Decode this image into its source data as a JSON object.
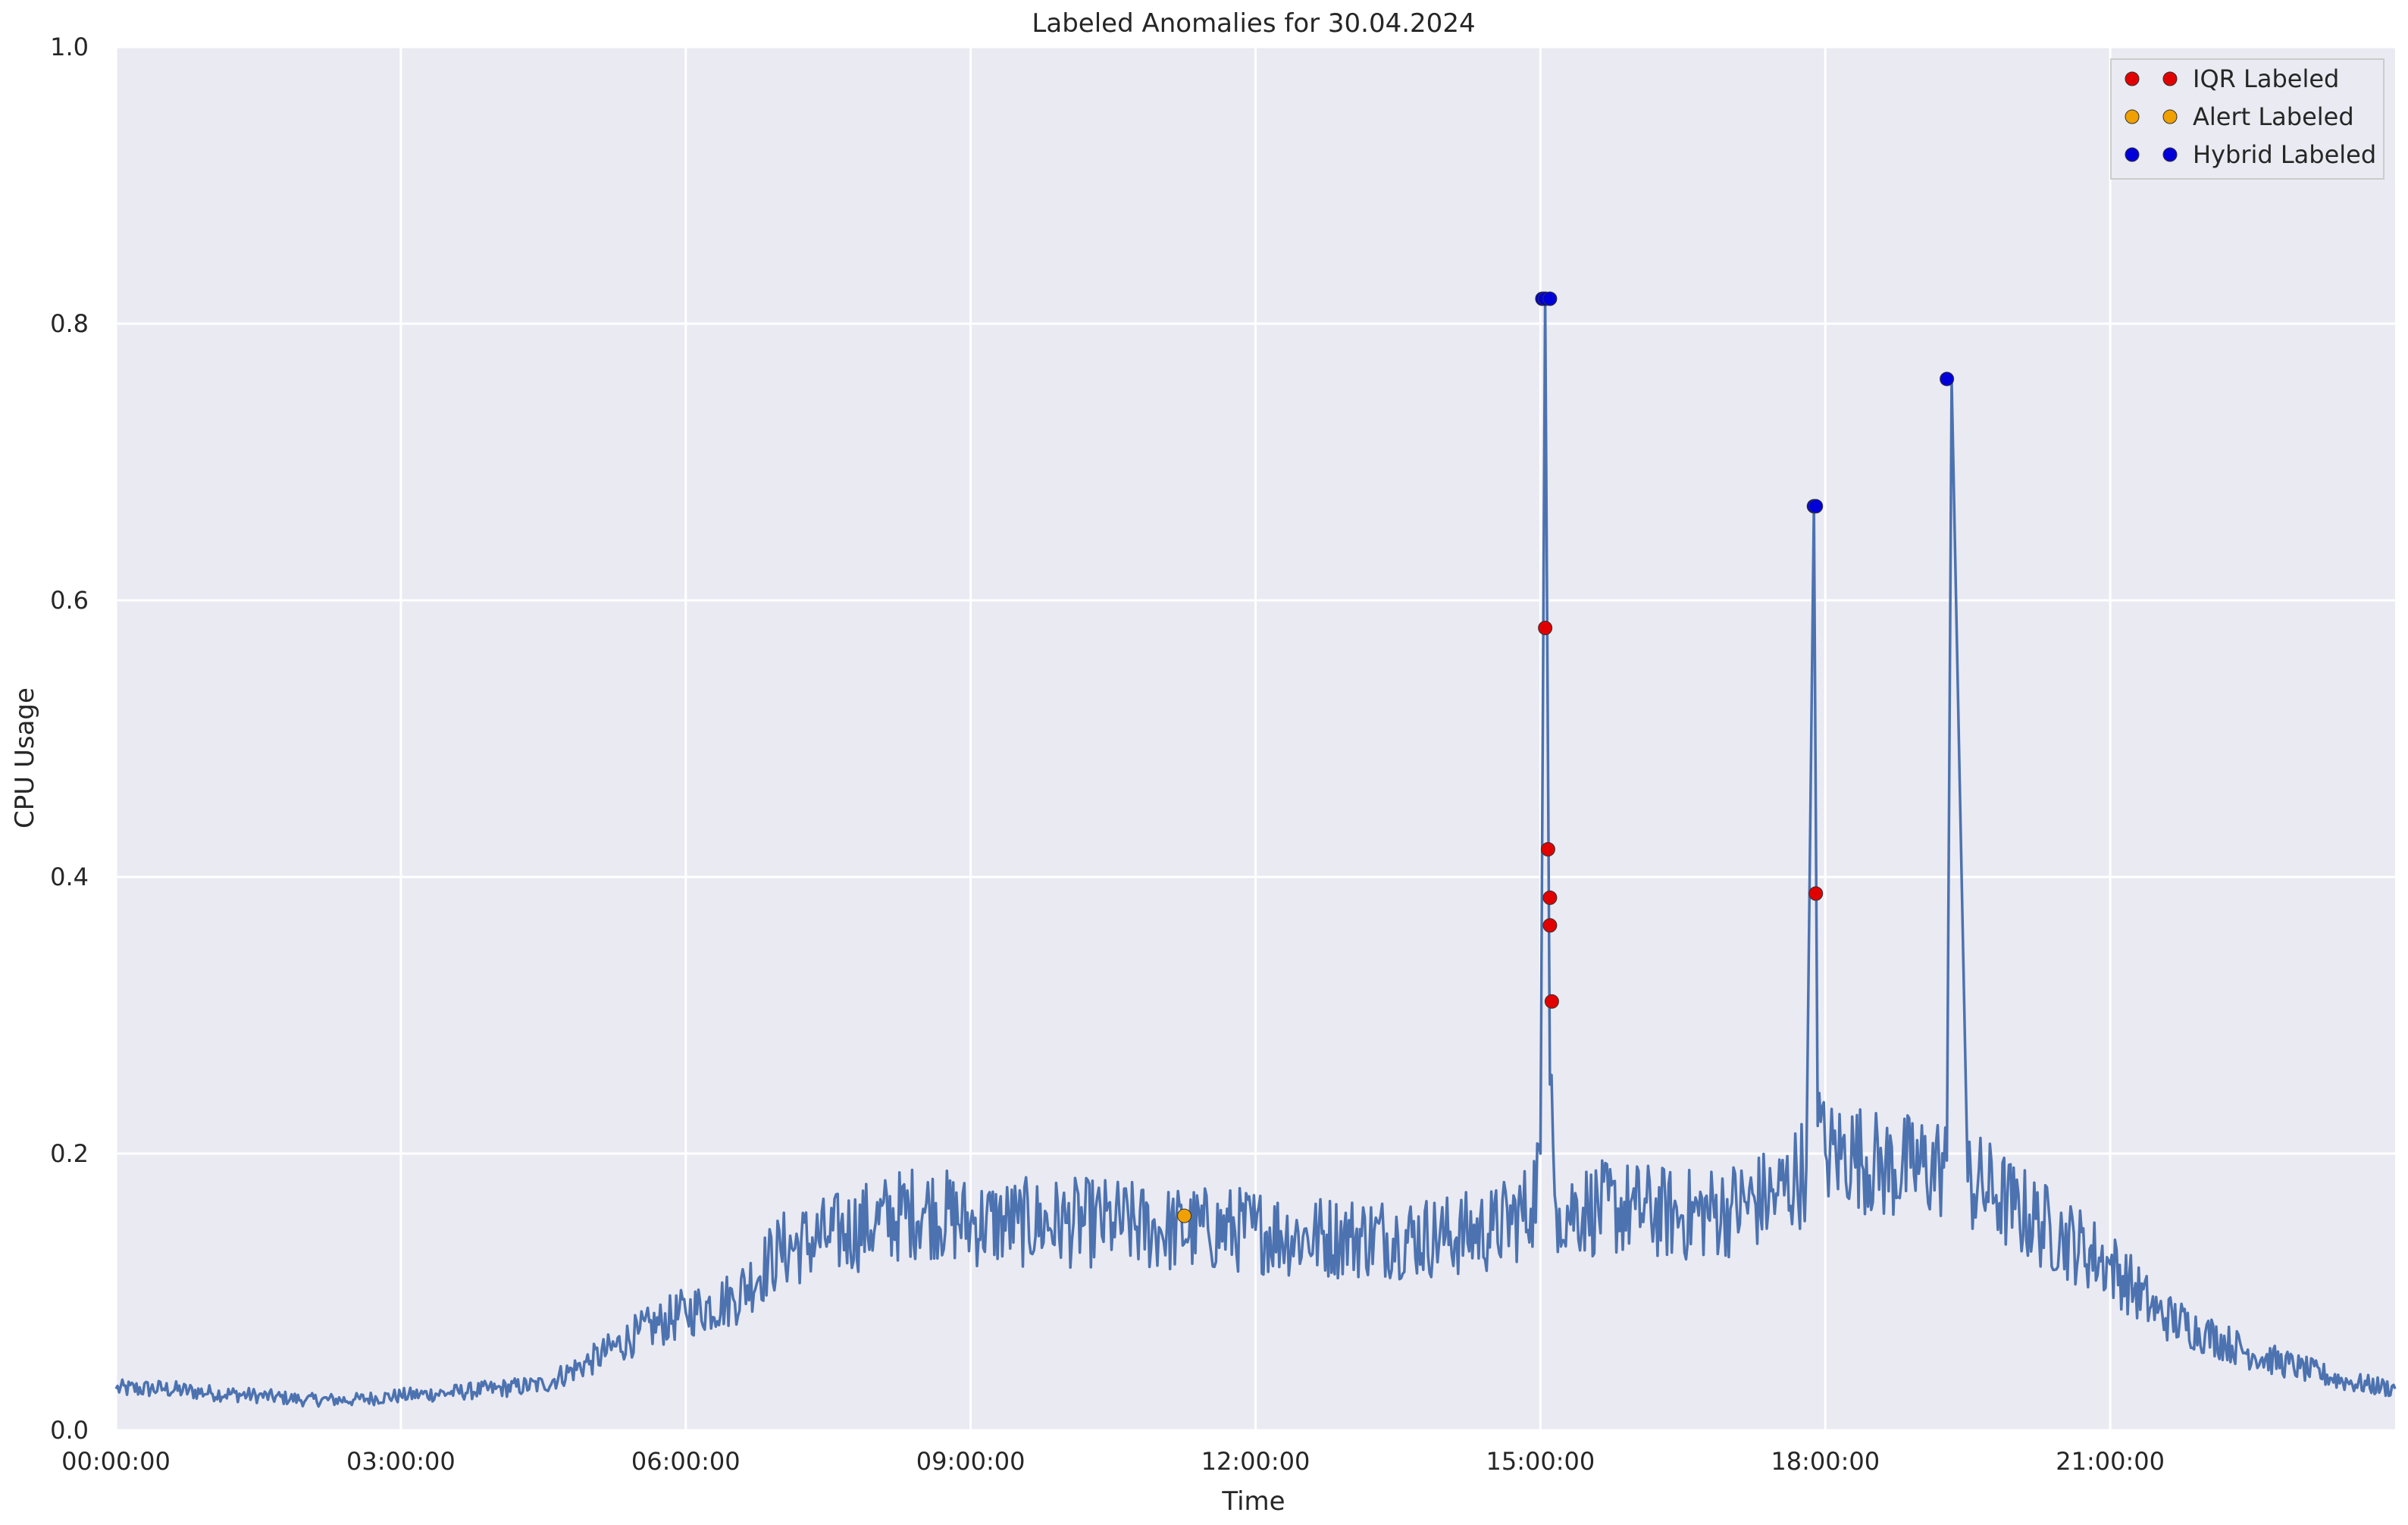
{
  "chart_data": {
    "type": "line",
    "title": "Labeled Anomalies for 30.04.2024",
    "xlabel": "Time",
    "ylabel": "CPU Usage",
    "x_unit": "time of day (hours)",
    "xlim": [
      0,
      24
    ],
    "ylim": [
      0.0,
      1.0
    ],
    "grid": true,
    "legend_position": "top-right",
    "x_ticks": [
      {
        "value": 0,
        "label": "00:00:00"
      },
      {
        "value": 3,
        "label": "03:00:00"
      },
      {
        "value": 6,
        "label": "06:00:00"
      },
      {
        "value": 9,
        "label": "09:00:00"
      },
      {
        "value": 12,
        "label": "12:00:00"
      },
      {
        "value": 15,
        "label": "15:00:00"
      },
      {
        "value": 18,
        "label": "18:00:00"
      },
      {
        "value": 21,
        "label": "21:00:00"
      }
    ],
    "y_ticks": [
      {
        "value": 0.0,
        "label": "0.0"
      },
      {
        "value": 0.2,
        "label": "0.2"
      },
      {
        "value": 0.4,
        "label": "0.4"
      },
      {
        "value": 0.6,
        "label": "0.6"
      },
      {
        "value": 0.8,
        "label": "0.8"
      },
      {
        "value": 1.0,
        "label": "1.0"
      }
    ],
    "series": [
      {
        "name": "CPU Usage",
        "kind": "line",
        "color": "#4c72b0",
        "x": [
          0,
          0.5,
          1,
          1.5,
          2,
          2.5,
          3,
          3.5,
          4,
          4.5,
          5,
          5.5,
          6,
          6.5,
          7,
          7.5,
          8,
          8.5,
          9,
          9.5,
          10,
          10.5,
          11,
          11.5,
          12,
          12.5,
          13,
          13.5,
          14,
          14.5,
          14.9,
          15.0,
          15.05,
          15.1,
          15.15,
          15.2,
          15.5,
          16,
          16.5,
          17,
          17.5,
          17.8,
          17.88,
          17.92,
          18.0,
          18.3,
          18.6,
          18.9,
          19.2,
          19.28,
          19.33,
          19.5,
          19.8,
          20,
          20.5,
          21,
          21.5,
          22,
          22.5,
          23,
          23.5,
          24
        ],
        "y": [
          0.03,
          0.03,
          0.027,
          0.025,
          0.022,
          0.022,
          0.025,
          0.027,
          0.03,
          0.033,
          0.05,
          0.07,
          0.085,
          0.095,
          0.13,
          0.14,
          0.15,
          0.16,
          0.15,
          0.15,
          0.15,
          0.15,
          0.145,
          0.145,
          0.145,
          0.14,
          0.14,
          0.14,
          0.14,
          0.145,
          0.16,
          0.2,
          0.82,
          0.25,
          0.17,
          0.16,
          0.16,
          0.16,
          0.155,
          0.16,
          0.17,
          0.19,
          0.67,
          0.22,
          0.2,
          0.2,
          0.19,
          0.19,
          0.19,
          0.195,
          0.76,
          0.18,
          0.17,
          0.16,
          0.14,
          0.12,
          0.085,
          0.07,
          0.055,
          0.045,
          0.035,
          0.03
        ]
      },
      {
        "name": "IQR Labeled",
        "kind": "marker",
        "color": "#e00000",
        "x": [
          15.05,
          15.08,
          15.1,
          15.1,
          15.12,
          17.9
        ],
        "y": [
          0.58,
          0.42,
          0.385,
          0.365,
          0.31,
          0.388
        ]
      },
      {
        "name": "Alert Labeled",
        "kind": "marker",
        "color": "#f0a000",
        "x": [
          11.25
        ],
        "y": [
          0.155
        ]
      },
      {
        "name": "Hybrid Labeled",
        "kind": "marker",
        "color": "#0000d8",
        "x": [
          15.02,
          15.05,
          15.1,
          17.88,
          17.9,
          19.28
        ],
        "y": [
          0.818,
          0.818,
          0.818,
          0.668,
          0.668,
          0.76
        ]
      }
    ]
  }
}
